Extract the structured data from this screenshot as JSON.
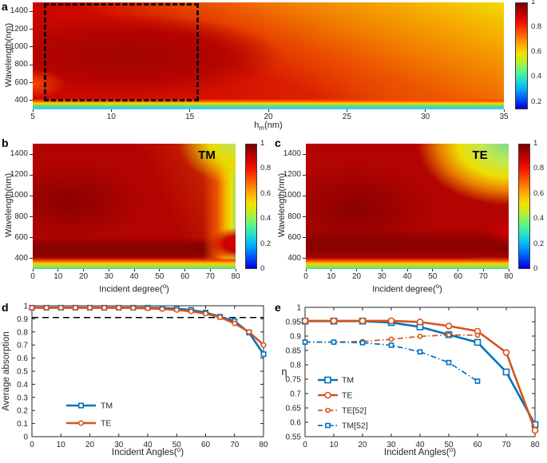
{
  "chart_data": [
    {
      "panel_label": "a",
      "type": "heatmap",
      "colormap": "jet",
      "xlabel": "h_m(nm)",
      "xlabel_parts": {
        "pre": "h",
        "sub": "m",
        "post": "(nm)"
      },
      "ylabel": "Wavelength(nm)",
      "xlim": [
        5,
        35
      ],
      "ylim": [
        300,
        1500
      ],
      "xticks": [
        5,
        10,
        15,
        20,
        25,
        30,
        35
      ],
      "yticks": [
        400,
        600,
        800,
        1000,
        1200,
        1400
      ],
      "colorbar_ticks": [
        1,
        0.8,
        0.6,
        0.4,
        0.2
      ],
      "colorbar_range": [
        0.14,
        1
      ],
      "highlight_box": {
        "x": [
          5.7,
          15.6
        ],
        "y": [
          390,
          1490
        ],
        "line": "dashed",
        "color": "#000000"
      },
      "description": "Absorption map vs metal thickness h_m and wavelength; deep red (~0.95+) over 5-20 nm and 450-1200 nm fading to orange/yellow (~0.75) toward 35 nm and 1500 nm; cyan band (~0.35) below 400 nm; dashed box marks optimal region."
    },
    {
      "panel_label": "b",
      "title": "TM",
      "type": "heatmap",
      "colormap": "jet",
      "xlabel": "Incident degree(°)",
      "xlabel_parts": {
        "pre": "Incident degree(",
        "sup": "o",
        "post": ")"
      },
      "ylabel": "Wavelength(nm)",
      "xlim": [
        0,
        80
      ],
      "ylim": [
        300,
        1500
      ],
      "xticks": [
        0,
        10,
        20,
        30,
        40,
        50,
        60,
        70,
        80
      ],
      "yticks": [
        400,
        600,
        800,
        1000,
        1200,
        1400
      ],
      "colorbar_ticks": [
        1,
        0.8,
        0.6,
        0.4,
        0.2,
        0
      ],
      "colorbar_range": [
        0,
        1
      ],
      "description": "TM absorption near 1 (dark red) for 0-65 degrees, dropping to yellow/green (~0.5-0.6) near 80 degrees; darkest band near 450-550 nm; green strip below ~350 nm."
    },
    {
      "panel_label": "c",
      "title": "TE",
      "type": "heatmap",
      "colormap": "jet",
      "xlabel": "Incident degree(°)",
      "xlabel_parts": {
        "pre": "Incident degree(",
        "sup": "o",
        "post": ")"
      },
      "ylabel": "Wavelength(nm)",
      "xlim": [
        0,
        80
      ],
      "ylim": [
        300,
        1500
      ],
      "xticks": [
        0,
        10,
        20,
        30,
        40,
        50,
        60,
        70,
        80
      ],
      "yticks": [
        400,
        600,
        800,
        1000,
        1200,
        1400
      ],
      "colorbar_ticks": [
        1,
        0.8,
        0.6,
        0.4,
        0.2,
        0
      ],
      "colorbar_range": [
        0,
        1
      ],
      "description": "TE absorption near 1 (dark red) at small angles with diagonal falloff to green (~0.5) in the top-right corner; darkest band near 550-650 nm; green strip below ~350 nm."
    },
    {
      "panel_label": "d",
      "type": "line",
      "xlabel": "Incident Angles(°)",
      "xlabel_parts": {
        "pre": "Incident Angles(",
        "sup": "o",
        "post": ")"
      },
      "ylabel": "Average absorption",
      "xlim": [
        0,
        80
      ],
      "ylim": [
        0,
        1
      ],
      "xticks": [
        0,
        10,
        20,
        30,
        40,
        50,
        60,
        70,
        80
      ],
      "ytick_labels": [
        "0",
        "0.1",
        "0.2",
        "0.3",
        "0.4",
        "0.5",
        "0.6",
        "0.7",
        "0.8",
        "0.9",
        "1"
      ],
      "x": [
        0,
        5,
        10,
        15,
        20,
        25,
        30,
        35,
        40,
        45,
        50,
        55,
        60,
        65,
        70,
        75,
        80
      ],
      "series": [
        {
          "name": "TM",
          "color": "#0072BD",
          "line": "solid",
          "marker": "square",
          "values": [
            0.985,
            0.985,
            0.985,
            0.985,
            0.985,
            0.985,
            0.985,
            0.985,
            0.985,
            0.982,
            0.978,
            0.968,
            0.948,
            0.916,
            0.882,
            0.795,
            0.63
          ]
        },
        {
          "name": "TE",
          "color": "#D95319",
          "line": "solid",
          "marker": "circle",
          "values": [
            0.985,
            0.985,
            0.985,
            0.985,
            0.985,
            0.985,
            0.985,
            0.983,
            0.98,
            0.975,
            0.968,
            0.957,
            0.94,
            0.912,
            0.865,
            0.8,
            0.7
          ]
        }
      ],
      "hline": {
        "y": 0.91,
        "line": "dashed",
        "color": "#000000"
      },
      "legend": [
        "TM",
        "TE"
      ],
      "legend_position": "lower-left"
    },
    {
      "panel_label": "e",
      "type": "line",
      "xlabel": "Incident Angles(°)",
      "xlabel_parts": {
        "pre": "Incident Angles(",
        "sup": "o",
        "post": ")"
      },
      "ylabel": "η",
      "xlim": [
        0,
        80
      ],
      "ylim": [
        0.55,
        1
      ],
      "xticks": [
        0,
        10,
        20,
        30,
        40,
        50,
        60,
        70,
        80
      ],
      "ytick_labels": [
        "0.55",
        "0.6",
        "0.65",
        "0.7",
        "0.75",
        "0.8",
        "0.85",
        "0.9",
        "0.95",
        "1"
      ],
      "x": [
        0,
        10,
        20,
        30,
        40,
        50,
        60,
        70,
        80
      ],
      "series": [
        {
          "name": "TM",
          "color": "#0072BD",
          "line": "solid",
          "marker": "square",
          "values": [
            0.952,
            0.952,
            0.952,
            0.947,
            0.932,
            0.905,
            0.878,
            0.775,
            0.592
          ]
        },
        {
          "name": "TE",
          "color": "#D95319",
          "line": "solid",
          "marker": "circle",
          "values": [
            0.953,
            0.953,
            0.953,
            0.953,
            0.949,
            0.935,
            0.917,
            0.843,
            0.572
          ]
        },
        {
          "name": "TE[52]",
          "color": "#D95319",
          "line": "dashdot",
          "marker": "circle",
          "x": [
            0,
            10,
            20,
            30,
            40,
            50,
            60
          ],
          "values": [
            0.879,
            0.879,
            0.881,
            0.889,
            0.899,
            0.904,
            0.903
          ]
        },
        {
          "name": "TM[52]",
          "color": "#0072BD",
          "line": "dashdot",
          "marker": "square",
          "x": [
            0,
            10,
            20,
            30,
            40,
            50,
            60
          ],
          "values": [
            0.879,
            0.879,
            0.877,
            0.868,
            0.845,
            0.808,
            0.743
          ]
        }
      ],
      "legend": [
        "TM",
        "TE",
        "TE[52]",
        "TM[52]"
      ],
      "legend_position": "lower-left"
    }
  ]
}
